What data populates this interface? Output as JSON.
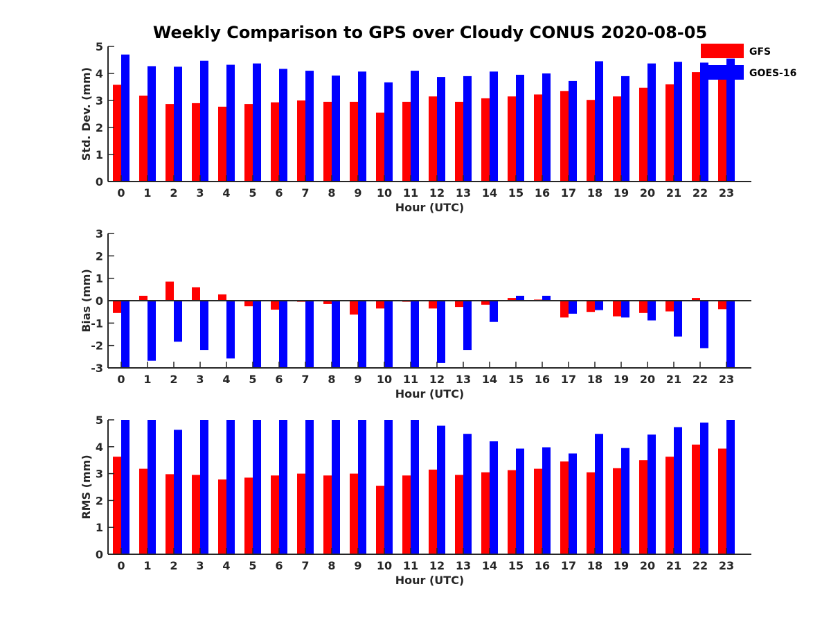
{
  "title": "Weekly Comparison to GPS over Cloudy CONUS 2020-08-05",
  "colors": {
    "gfs": "#ff0000",
    "goes": "#0000ff",
    "axis": "#262626"
  },
  "legend": {
    "placement": "top-right",
    "entries": [
      "GFS",
      "GOES-16"
    ]
  },
  "chart_data": [
    {
      "type": "bar",
      "xlabel": "Hour (UTC)",
      "ylabel": "Std. Dev. (mm)",
      "ylim": [
        0,
        5
      ],
      "yticks": [
        "0",
        "1",
        "2",
        "3",
        "4",
        "5"
      ],
      "categories": [
        "0",
        "1",
        "2",
        "3",
        "4",
        "5",
        "6",
        "7",
        "8",
        "9",
        "10",
        "11",
        "12",
        "13",
        "14",
        "15",
        "16",
        "17",
        "18",
        "19",
        "20",
        "21",
        "22",
        "23"
      ],
      "series": [
        {
          "name": "GFS",
          "values": [
            3.58,
            3.18,
            2.87,
            2.9,
            2.77,
            2.87,
            2.93,
            3.0,
            2.95,
            2.95,
            2.55,
            2.95,
            3.15,
            2.95,
            3.08,
            3.15,
            3.22,
            3.35,
            3.02,
            3.15,
            3.47,
            3.6,
            4.05,
            3.87
          ]
        },
        {
          "name": "GOES-16",
          "values": [
            4.7,
            4.27,
            4.25,
            4.47,
            4.32,
            4.37,
            4.17,
            4.1,
            3.92,
            4.07,
            3.67,
            4.1,
            3.87,
            3.9,
            4.07,
            3.95,
            4.0,
            3.72,
            4.45,
            3.9,
            4.37,
            4.43,
            4.4,
            4.55
          ]
        }
      ]
    },
    {
      "type": "bar",
      "xlabel": "Hour (UTC)",
      "ylabel": "Bias (mm)",
      "ylim": [
        -3,
        3
      ],
      "yticks": [
        "-3",
        "-2",
        "-1",
        "0",
        "1",
        "2",
        "3"
      ],
      "categories": [
        "0",
        "1",
        "2",
        "3",
        "4",
        "5",
        "6",
        "7",
        "8",
        "9",
        "10",
        "11",
        "12",
        "13",
        "14",
        "15",
        "16",
        "17",
        "18",
        "19",
        "20",
        "21",
        "22",
        "23"
      ],
      "series": [
        {
          "name": "GFS",
          "values": [
            -0.55,
            0.22,
            0.85,
            0.6,
            0.28,
            -0.25,
            -0.4,
            -0.05,
            -0.15,
            -0.62,
            -0.35,
            -0.05,
            -0.35,
            -0.28,
            -0.18,
            0.12,
            0.05,
            -0.75,
            -0.5,
            -0.7,
            -0.55,
            -0.48,
            0.12,
            -0.38
          ]
        },
        {
          "name": "GOES-16",
          "values": [
            -3.0,
            -2.68,
            -1.83,
            -2.2,
            -2.58,
            -3.0,
            -3.0,
            -3.0,
            -3.0,
            -3.0,
            -3.0,
            -3.0,
            -2.78,
            -2.2,
            -0.95,
            0.22,
            0.22,
            -0.58,
            -0.42,
            -0.75,
            -0.88,
            -1.6,
            -2.12,
            -3.0
          ]
        }
      ]
    },
    {
      "type": "bar",
      "xlabel": "Hour (UTC)",
      "ylabel": "RMS (mm)",
      "ylim": [
        0,
        5
      ],
      "yticks": [
        "0",
        "1",
        "2",
        "3",
        "4",
        "5"
      ],
      "categories": [
        "0",
        "1",
        "2",
        "3",
        "4",
        "5",
        "6",
        "7",
        "8",
        "9",
        "10",
        "11",
        "12",
        "13",
        "14",
        "15",
        "16",
        "17",
        "18",
        "19",
        "20",
        "21",
        "22",
        "23"
      ],
      "series": [
        {
          "name": "GFS",
          "values": [
            3.63,
            3.18,
            2.98,
            2.95,
            2.78,
            2.85,
            2.93,
            3.0,
            2.93,
            3.0,
            2.55,
            2.93,
            3.15,
            2.95,
            3.05,
            3.13,
            3.18,
            3.45,
            3.05,
            3.2,
            3.5,
            3.63,
            4.08,
            3.93
          ]
        },
        {
          "name": "GOES-16",
          "values": [
            5.0,
            5.0,
            4.63,
            5.0,
            5.0,
            5.0,
            5.0,
            5.0,
            5.0,
            5.0,
            5.0,
            5.0,
            4.78,
            4.48,
            4.2,
            3.93,
            3.98,
            3.75,
            4.48,
            3.95,
            4.45,
            4.73,
            4.9,
            5.0
          ]
        }
      ]
    }
  ]
}
